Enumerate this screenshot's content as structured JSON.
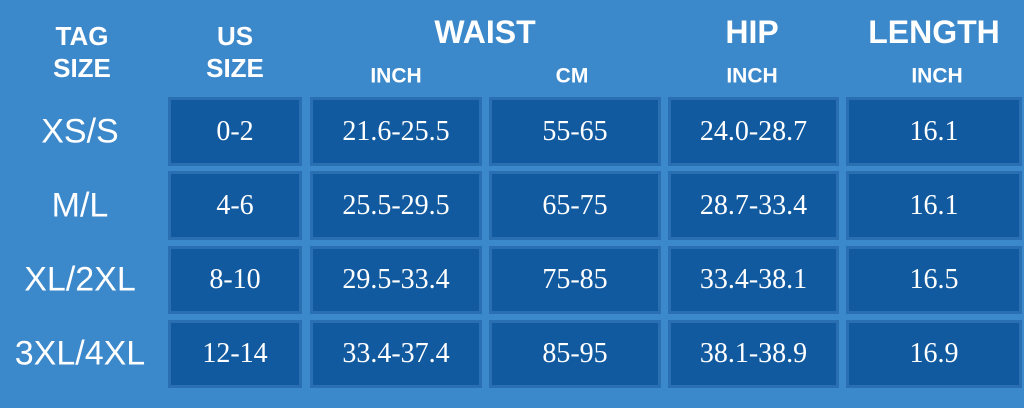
{
  "header": {
    "tag_size": [
      "TAG",
      "SIZE"
    ],
    "us_size": [
      "US",
      "SIZE"
    ],
    "waist": "WAIST",
    "waist_inch": "INCH",
    "waist_cm": "CM",
    "hip": "HIP",
    "hip_inch": "INCH",
    "length": "LENGTH",
    "length_inch": "INCH"
  },
  "table": {
    "rows": [
      [
        "XS/S",
        "0-2",
        "21.6-25.5",
        "55-65",
        "24.0-28.7",
        "16.1"
      ],
      [
        "M/L",
        "4-6",
        "25.5-29.5",
        "65-75",
        "28.7-33.4",
        "16.1"
      ],
      [
        "XL/2XL",
        "8-10",
        "29.5-33.4",
        "75-85",
        "33.4-38.1",
        "16.5"
      ],
      [
        "3XL/4XL",
        "12-14",
        "33.4-37.4",
        "85-95",
        "38.1-38.9",
        "16.9"
      ]
    ]
  }
}
